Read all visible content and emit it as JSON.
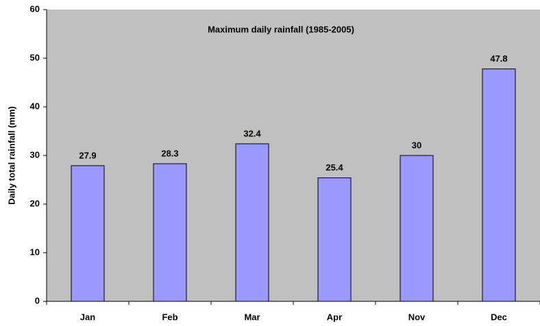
{
  "chart_data": {
    "type": "bar",
    "title": "Maximum daily rainfall (1985-2005)",
    "y_label": "Daily total rainfall (mm)",
    "categories": [
      "Jan",
      "Feb",
      "Mar",
      "Apr",
      "Nov",
      "Dec"
    ],
    "values": [
      27.9,
      28.3,
      32.4,
      25.4,
      30,
      47.8
    ],
    "color": "#9999ff",
    "ylim": [
      0,
      60
    ],
    "yticks": [
      0,
      10,
      20,
      30,
      40,
      50,
      60
    ],
    "grid": false
  }
}
